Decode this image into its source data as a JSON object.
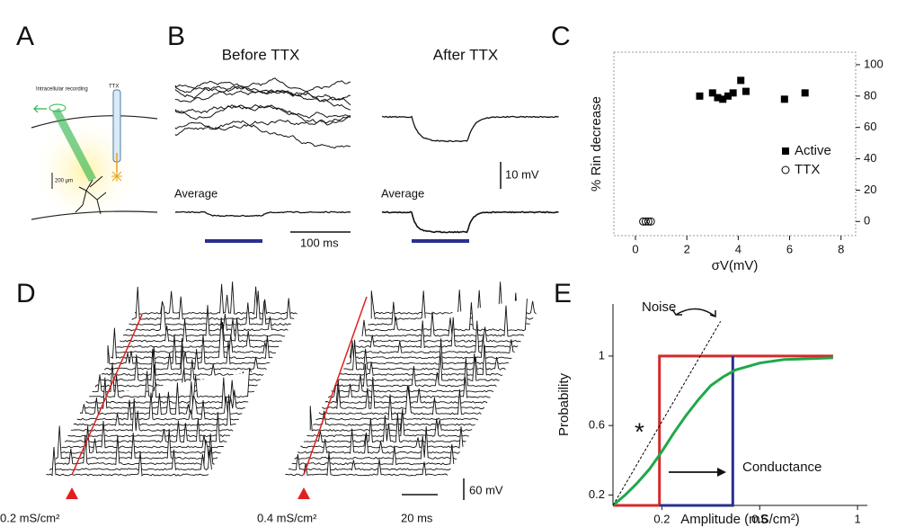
{
  "panels": {
    "letters": [
      "A",
      "B",
      "C",
      "D",
      "E"
    ],
    "a": {
      "recording": "Intracellular recording",
      "drug": "TTX",
      "scale": "200 μm"
    },
    "b": {
      "before": "Before TTX",
      "after": "After TTX",
      "average_before": "Average",
      "average_after": "Average",
      "voltage_scale": "10 mV",
      "time_scale": "100 ms"
    },
    "d": {
      "left_conductance": "0.2 mS/cm²",
      "right_conductance": "0.4 mS/cm²",
      "time_scale": "20 ms",
      "voltage_scale": "60 mV"
    }
  },
  "chart_data": [
    {
      "type": "scatter",
      "y_label": "% Rin decrease",
      "x_label": "σV(mV)",
      "xlim": [
        -0.84,
        8.57
      ],
      "ylim": [
        -9,
        108
      ],
      "xticks": [
        0,
        2,
        4,
        6,
        8
      ],
      "yticks": [
        0,
        20,
        40,
        60,
        80,
        100
      ],
      "legend": "right",
      "series": [
        {
          "name": "Active",
          "marker": "square",
          "color": "#000000",
          "x": [
            2.5,
            3.0,
            3.2,
            3.4,
            3.6,
            3.8,
            4.1,
            4.3,
            5.8,
            6.6
          ],
          "values": [
            80,
            82,
            79,
            78,
            80,
            82,
            90,
            83,
            78,
            82
          ]
        },
        {
          "name": "TTX",
          "marker": "circle-open",
          "color": "#000000",
          "x": [
            0.3,
            0.4,
            0.5,
            0.6
          ],
          "values": [
            0,
            0,
            0,
            0
          ]
        }
      ]
    },
    {
      "type": "line",
      "y_label": "Probability",
      "x_label": "Amplitude (mS/cm²)",
      "xlim": [
        0,
        1.04
      ],
      "ylim": [
        0.14,
        1.3
      ],
      "xticks": [
        0.2,
        0.6,
        1
      ],
      "yticks": [
        0.2,
        0.6,
        1
      ],
      "annotations": [
        "Noise",
        "Conductance",
        "*"
      ],
      "series": [
        {
          "color": "#d42a2a",
          "x": [
            0,
            0.19,
            0.19,
            0.9
          ],
          "values": [
            0.14,
            0.14,
            1,
            1
          ]
        },
        {
          "color": "#2b2f8f",
          "x": [
            0.19,
            0.49,
            0.49
          ],
          "values": [
            0.14,
            0.14,
            1
          ]
        },
        {
          "color": "#1fa84a",
          "x": [
            0,
            0.05,
            0.1,
            0.15,
            0.2,
            0.25,
            0.3,
            0.35,
            0.4,
            0.45,
            0.5,
            0.6,
            0.7,
            0.9
          ],
          "values": [
            0.14,
            0.2,
            0.27,
            0.35,
            0.45,
            0.56,
            0.66,
            0.75,
            0.83,
            0.88,
            0.92,
            0.96,
            0.98,
            0.99
          ]
        },
        {
          "color": "#000000",
          "dash": true,
          "x": [
            0,
            0.44
          ],
          "values": [
            0.14,
            1.2
          ]
        }
      ]
    }
  ]
}
